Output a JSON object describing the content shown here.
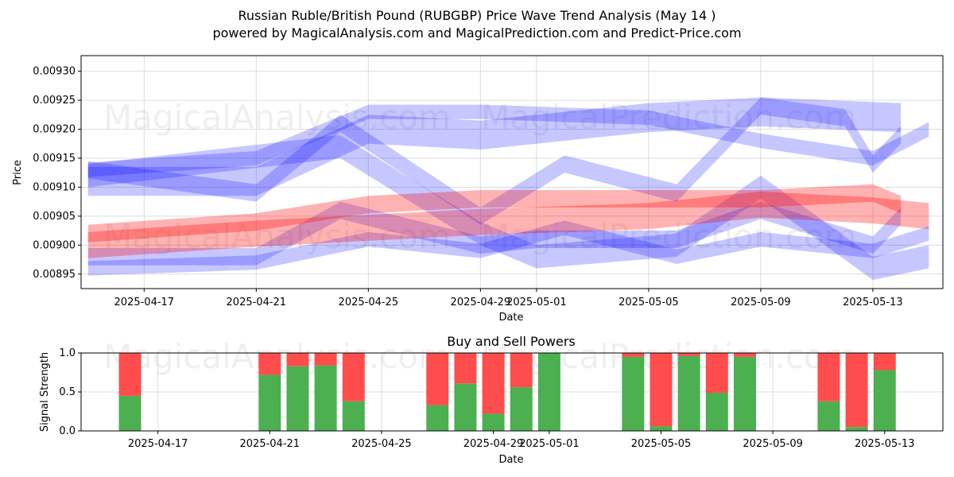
{
  "title": "Russian Ruble/British Pound (RUBGBP) Price Wave Trend Analysis (May 14 )",
  "subtitle": "powered by MagicalAnalysis.com and MagicalPrediction.com and Predict-Price.com",
  "watermarks": [
    "MagicalAnalysis.com",
    "MagicalPrediction.com"
  ],
  "colors": {
    "buy": "#4caf50",
    "sell": "#ff4d4d",
    "blue_band": "#0000ff",
    "red_band": "#ff0000",
    "grid": "#dddddd"
  },
  "chart_data": [
    {
      "type": "area",
      "xlabel": "Date",
      "ylabel": "Price",
      "x_range": [
        "2025-04-14T18:00",
        "2025-05-15T12:00"
      ],
      "ylim": [
        0.008925,
        0.009327
      ],
      "x_ticks": [
        "2025-04-17",
        "2025-04-21",
        "2025-04-25",
        "2025-04-29",
        "2025-05-01",
        "2025-05-05",
        "2025-05-09",
        "2025-05-13"
      ],
      "y_ticks": [
        "0.00895",
        "0.00900",
        "0.00905",
        "0.00910",
        "0.00915",
        "0.00920",
        "0.00925",
        "0.00930"
      ],
      "grid": true,
      "series": [
        {
          "color": "blue",
          "x": [
            "2025-04-15",
            "2025-04-21",
            "2025-04-25",
            "2025-04-29",
            "2025-05-05",
            "2025-05-09",
            "2025-05-14"
          ],
          "values": [
            0.00911,
            0.00911,
            0.0092,
            0.00919,
            0.00922,
            0.00923,
            0.00922
          ],
          "width": 5e-05
        },
        {
          "color": "blue",
          "x": [
            "2025-04-15",
            "2025-04-21",
            "2025-04-24",
            "2025-04-29",
            "2025-05-02",
            "2025-05-06",
            "2025-05-09",
            "2025-05-12",
            "2025-05-13",
            "2025-05-14"
          ],
          "values": [
            0.00913,
            0.00909,
            0.00921,
            0.00905,
            0.00914,
            0.00909,
            0.00924,
            0.00922,
            0.00914,
            0.00919
          ],
          "width": 3e-05
        },
        {
          "color": "blue",
          "x": [
            "2025-04-15",
            "2025-04-21",
            "2025-04-25",
            "2025-04-29",
            "2025-05-05",
            "2025-05-09",
            "2025-05-13",
            "2025-05-15"
          ],
          "values": [
            0.00913,
            0.00915,
            0.00923,
            0.00923,
            0.00922,
            0.00918,
            0.00915,
            0.0092
          ],
          "width": 2.5e-05
        },
        {
          "color": "blue",
          "x": [
            "2025-04-15",
            "2025-04-21",
            "2025-04-24",
            "2025-04-29",
            "2025-05-01",
            "2025-05-06",
            "2025-05-09",
            "2025-05-13",
            "2025-05-14"
          ],
          "values": [
            0.00898,
            0.00898,
            0.00906,
            0.009,
            0.00901,
            0.00901,
            0.00906,
            0.009,
            0.00905
          ],
          "width": 3e-05
        },
        {
          "color": "blue",
          "x": [
            "2025-04-15",
            "2025-04-21",
            "2025-04-25",
            "2025-04-29",
            "2025-05-02",
            "2025-05-06",
            "2025-05-09",
            "2025-05-13",
            "2025-05-15"
          ],
          "values": [
            0.00896,
            0.00897,
            0.00901,
            0.00899,
            0.00903,
            0.00898,
            0.00901,
            0.00899,
            0.00902
          ],
          "width": 2.5e-05
        },
        {
          "color": "blue",
          "x": [
            "2025-04-15",
            "2025-04-24",
            "2025-04-29",
            "2025-05-01",
            "2025-05-06",
            "2025-05-09",
            "2025-05-13",
            "2025-05-15"
          ],
          "values": [
            0.00912,
            0.00917,
            0.00902,
            0.00898,
            0.009,
            0.0091,
            0.00896,
            0.00898
          ],
          "width": 4e-05
        },
        {
          "color": "red",
          "x": [
            "2025-04-15",
            "2025-04-21",
            "2025-04-25",
            "2025-04-29",
            "2025-05-05",
            "2025-05-09",
            "2025-05-13",
            "2025-05-15"
          ],
          "values": [
            0.009,
            0.00902,
            0.00903,
            0.00904,
            0.00905,
            0.00907,
            0.00906,
            0.00905
          ],
          "width": 4.5e-05
        },
        {
          "color": "red",
          "x": [
            "2025-04-15",
            "2025-04-21",
            "2025-04-25",
            "2025-04-29",
            "2025-05-05",
            "2025-05-09",
            "2025-05-13",
            "2025-05-14"
          ],
          "values": [
            0.00902,
            0.00904,
            0.00907,
            0.00908,
            0.00908,
            0.00908,
            0.00909,
            0.00907
          ],
          "width": 3e-05
        }
      ]
    },
    {
      "type": "bar",
      "title": "Buy and Sell Powers",
      "xlabel": "Date",
      "ylabel": "Signal Strength",
      "ylim": [
        0,
        1
      ],
      "y_ticks": [
        "0.0",
        "0.5",
        "1.0"
      ],
      "x_ticks": [
        "2025-04-17",
        "2025-04-21",
        "2025-04-25",
        "2025-04-29",
        "2025-05-01",
        "2025-05-05",
        "2025-05-09",
        "2025-05-13"
      ],
      "dates": [
        "2025-04-16",
        "2025-04-21",
        "2025-04-22",
        "2025-04-23",
        "2025-04-24",
        "2025-04-27",
        "2025-04-28",
        "2025-04-29",
        "2025-04-30",
        "2025-05-01",
        "2025-05-04",
        "2025-05-05",
        "2025-05-06",
        "2025-05-07",
        "2025-05-08",
        "2025-05-11",
        "2025-05-12",
        "2025-05-13"
      ],
      "buy": [
        0.45,
        0.72,
        0.83,
        0.84,
        0.38,
        0.33,
        0.61,
        0.22,
        0.56,
        1.0,
        0.95,
        0.06,
        0.96,
        0.49,
        0.95,
        0.38,
        0.05,
        0.78
      ],
      "sell": [
        0.55,
        0.28,
        0.17,
        0.16,
        0.62,
        0.67,
        0.39,
        0.78,
        0.44,
        0.0,
        0.05,
        0.94,
        0.04,
        0.51,
        0.05,
        0.62,
        0.95,
        0.22
      ]
    }
  ]
}
